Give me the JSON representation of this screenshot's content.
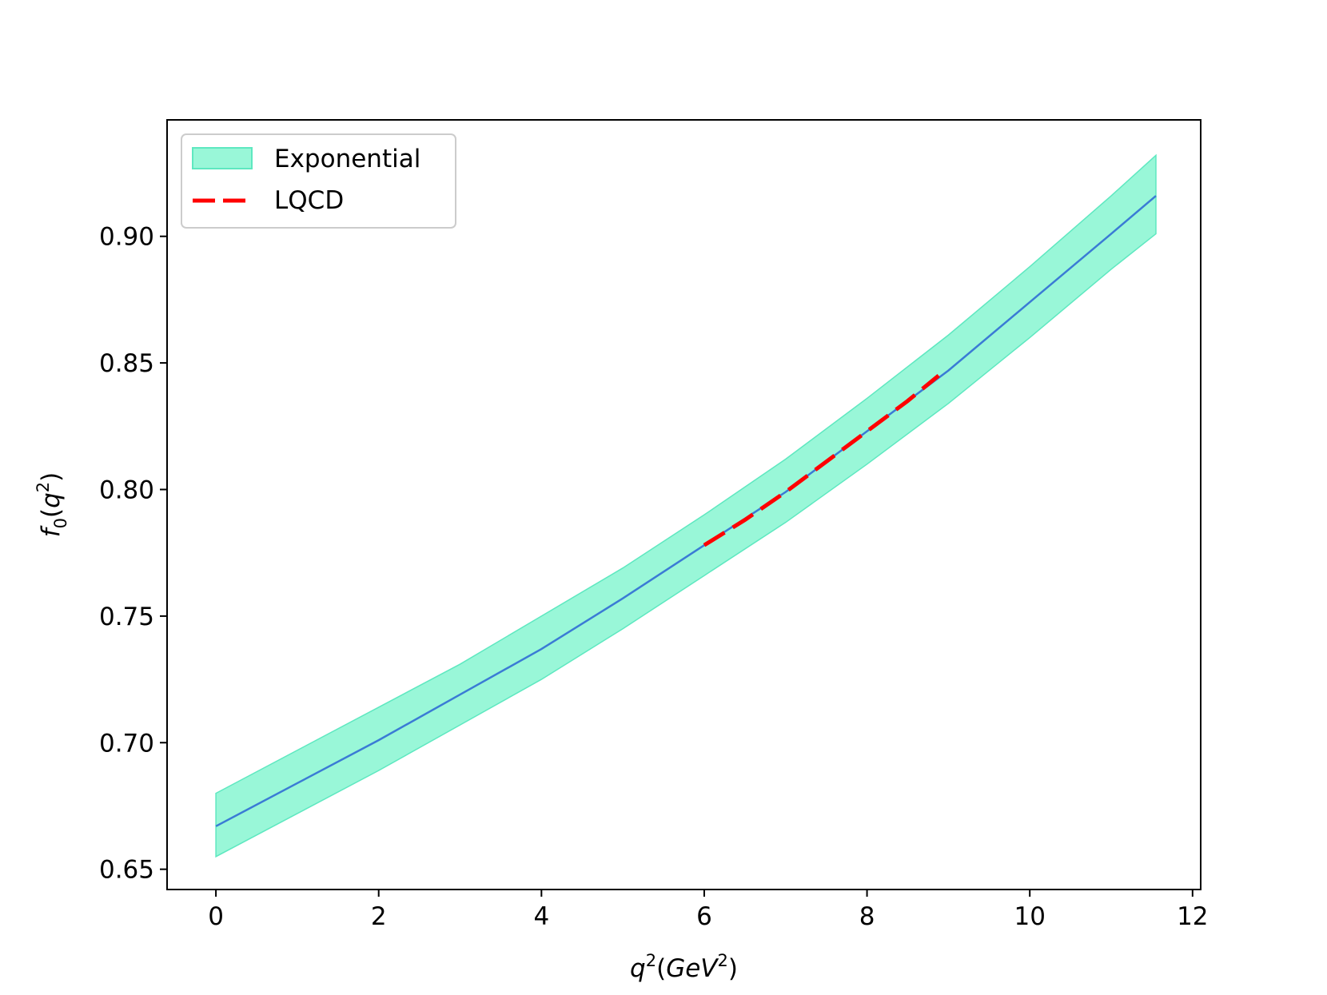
{
  "chart_data": {
    "type": "line",
    "title": "",
    "xlabel": {
      "base": "q",
      "sup": "2",
      "paren_open": "(",
      "unit": "GeV",
      "unit_sup": "2",
      "paren_close": ")"
    },
    "ylabel": {
      "base": "f",
      "sub": "0",
      "paren_open": "(",
      "arg": "q",
      "arg_sup": "2",
      "paren_close": ")"
    },
    "xlim": [
      -0.6,
      12.1
    ],
    "ylim": [
      0.642,
      0.946
    ],
    "xticks": [
      0,
      2,
      4,
      6,
      8,
      10,
      12
    ],
    "xtick_labels": [
      "0",
      "2",
      "4",
      "6",
      "8",
      "10",
      "12"
    ],
    "yticks": [
      0.65,
      0.7,
      0.75,
      0.8,
      0.85,
      0.9
    ],
    "ytick_labels": [
      "0.65",
      "0.70",
      "0.75",
      "0.80",
      "0.85",
      "0.90"
    ],
    "legend_position": "top-left",
    "grid": false,
    "colors": {
      "band_fill": "#99f7d8",
      "band_edge": "#5ee8c0",
      "central": "#3a7bd5",
      "lqcd": "#ff0000"
    },
    "series": [
      {
        "name": "Exponential",
        "kind": "band",
        "x": [
          0,
          1,
          2,
          3,
          4,
          5,
          6,
          7,
          8,
          9,
          10,
          11,
          11.55
        ],
        "lower": [
          0.655,
          0.672,
          0.689,
          0.707,
          0.725,
          0.745,
          0.766,
          0.787,
          0.81,
          0.834,
          0.86,
          0.887,
          0.901
        ],
        "upper": [
          0.68,
          0.697,
          0.714,
          0.731,
          0.75,
          0.769,
          0.79,
          0.812,
          0.836,
          0.861,
          0.888,
          0.916,
          0.932
        ]
      },
      {
        "kind": "central",
        "x": [
          0,
          1,
          2,
          3,
          4,
          5,
          6,
          7,
          8,
          9,
          10,
          11,
          11.55
        ],
        "y": [
          0.667,
          0.684,
          0.701,
          0.719,
          0.737,
          0.757,
          0.778,
          0.799,
          0.823,
          0.847,
          0.874,
          0.901,
          0.916
        ]
      },
      {
        "name": "LQCD",
        "kind": "dashed",
        "x": [
          6.0,
          6.5,
          7.0,
          7.5,
          8.0,
          8.5,
          8.88
        ],
        "y": [
          0.778,
          0.788,
          0.799,
          0.811,
          0.823,
          0.835,
          0.845
        ]
      }
    ]
  }
}
